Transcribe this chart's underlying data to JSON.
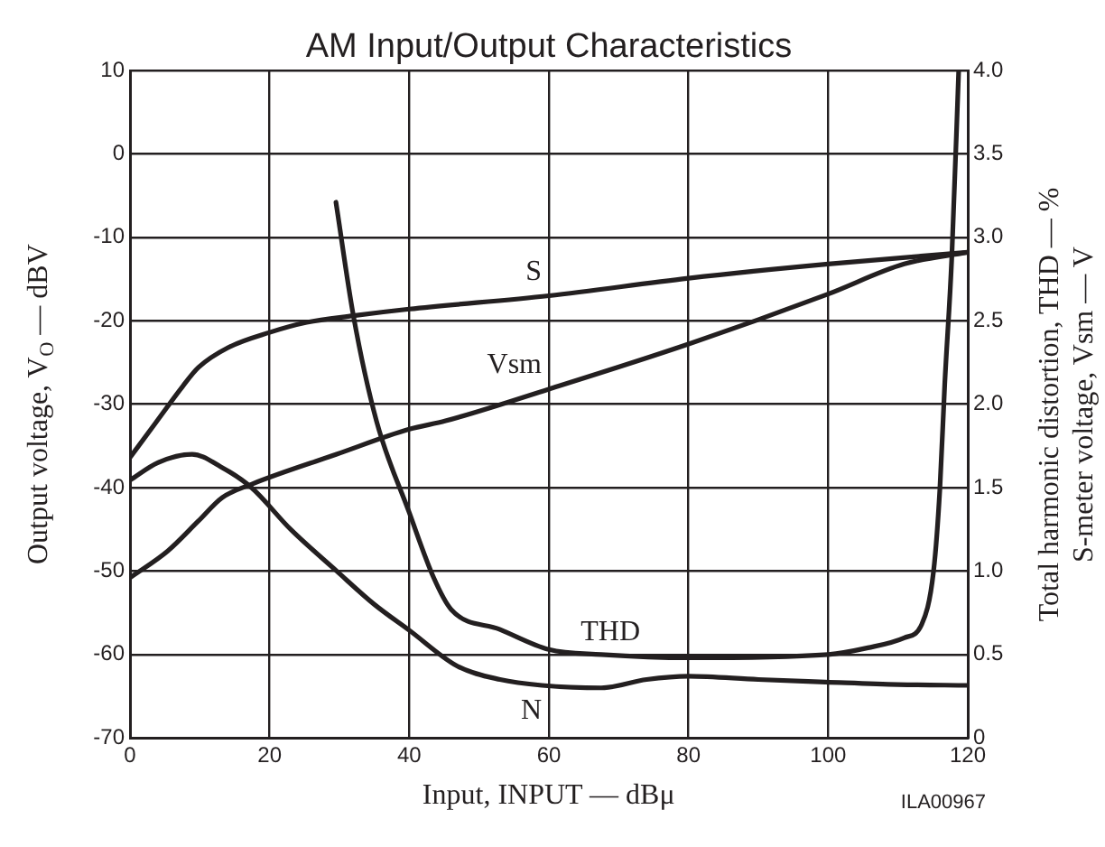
{
  "chart_data": {
    "type": "line",
    "title": "AM Input/Output Characteristics",
    "xlabel": "Input, INPUT — dBμ",
    "ylabel": "Output voltage, V$_{O}$ — dBV",
    "y2label": "Total harmonic distortion, THD — %\nS-meter voltage, Vsm — V",
    "series": [
      {
        "name": "S",
        "color": "#231f20",
        "x": [
          0,
          3.7,
          7.6,
          9.8,
          14.1,
          20,
          25.3,
          32,
          40,
          60,
          80,
          100,
          120
        ],
        "values": [
          -36.4,
          -32.2,
          -27.8,
          -25.6,
          -23.2,
          -21.4,
          -20.2,
          -19.4,
          -18.6,
          -17,
          -14.9,
          -13.2,
          -11.8
        ]
      },
      {
        "name": "N",
        "color": "#231f20",
        "x": [
          0,
          4,
          8.9,
          13,
          17.4,
          23,
          29.6,
          35,
          40,
          46.9,
          53,
          59,
          67.5,
          74,
          80,
          90,
          99.6,
          110,
          120
        ],
        "values": [
          -39.1,
          -37,
          -36,
          -37.5,
          -40,
          -45,
          -50,
          -54,
          -57.1,
          -61.4,
          -63,
          -63.7,
          -64,
          -63,
          -62.6,
          -63,
          -63.3,
          -63.6,
          -63.7
        ]
      },
      {
        "name": "THD",
        "color": "#231f20",
        "axis": "y2",
        "x": [
          29.5,
          32,
          35.3,
          40,
          43.5,
          46,
          53,
          60,
          67.5,
          80,
          100,
          105.7,
          110.9,
          113.4,
          115.1,
          116,
          116.7,
          117.7,
          118.7
        ],
        "values": [
          3.21,
          2.53,
          1.9,
          1.35,
          0.96,
          0.77,
          0.65,
          0.53,
          0.5,
          0.48,
          0.5,
          0.54,
          0.6,
          0.68,
          1.0,
          1.49,
          2.12,
          2.87,
          4.0
        ]
      },
      {
        "name": "Vsm",
        "color": "#231f20",
        "axis": "y2",
        "x": [
          0,
          5.4,
          9.8,
          13.2,
          17.4,
          29.6,
          40,
          45.2,
          60,
          80,
          100,
          110.9,
          120
        ],
        "values": [
          0.96,
          1.12,
          1.3,
          1.44,
          1.52,
          1.7,
          1.85,
          1.9,
          2.09,
          2.36,
          2.66,
          2.84,
          2.91
        ]
      }
    ],
    "xlim": [
      0,
      120
    ],
    "xticks": [
      0,
      20,
      40,
      60,
      80,
      100,
      120
    ],
    "ylim": [
      -70,
      10
    ],
    "yticks": [
      -70,
      -60,
      -50,
      -40,
      -30,
      -20,
      -10,
      0,
      10
    ],
    "y2lim": [
      0,
      4
    ],
    "y2ticks": [
      0,
      0.5,
      {
        "value": 1,
        "label": "1.0"
      },
      1.5,
      {
        "value": 2,
        "label": "2.0"
      },
      2.5,
      {
        "value": 3,
        "label": "3.0"
      },
      3.5,
      {
        "value": 4,
        "label": "4.0"
      }
    ],
    "grid": true,
    "legend": false,
    "marker": "none",
    "line_style": "solid",
    "annotations": [
      "ILA00967"
    ]
  }
}
